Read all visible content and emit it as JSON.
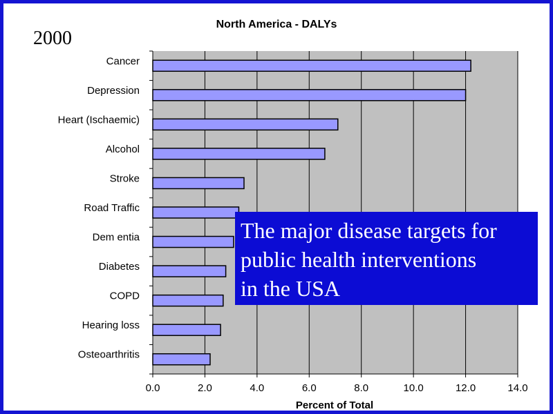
{
  "year_label": "2000",
  "callout": {
    "lines": [
      "The major disease targets for",
      "public health interventions",
      "in the USA"
    ]
  },
  "colors": {
    "frame": "#1414d2",
    "plot_area": "#c0c0c0",
    "bar_fill": "#9999ff",
    "callout_bg": "#0c0cd4",
    "callout_text": "#ffffff"
  },
  "chart_data": {
    "type": "bar",
    "orientation": "horizontal",
    "title": "North America - DALYs",
    "xlabel": "Percent of Total",
    "ylabel": "",
    "categories": [
      "Cancer",
      "Depression",
      "Heart (Ischaemic)",
      "Alcohol",
      "Stroke",
      "Road Traffic",
      "Dem entia",
      "Diabetes",
      "COPD",
      "Hearing loss",
      "Osteoarthritis"
    ],
    "values": [
      12.2,
      12.0,
      7.1,
      6.6,
      3.5,
      3.3,
      3.1,
      2.8,
      2.7,
      2.6,
      2.2
    ],
    "xlim": [
      0,
      14
    ],
    "x_ticks": [
      "0.0",
      "2.0",
      "4.0",
      "6.0",
      "8.0",
      "10.0",
      "12.0",
      "14.0"
    ],
    "grid": "vertical",
    "legend": "none"
  }
}
